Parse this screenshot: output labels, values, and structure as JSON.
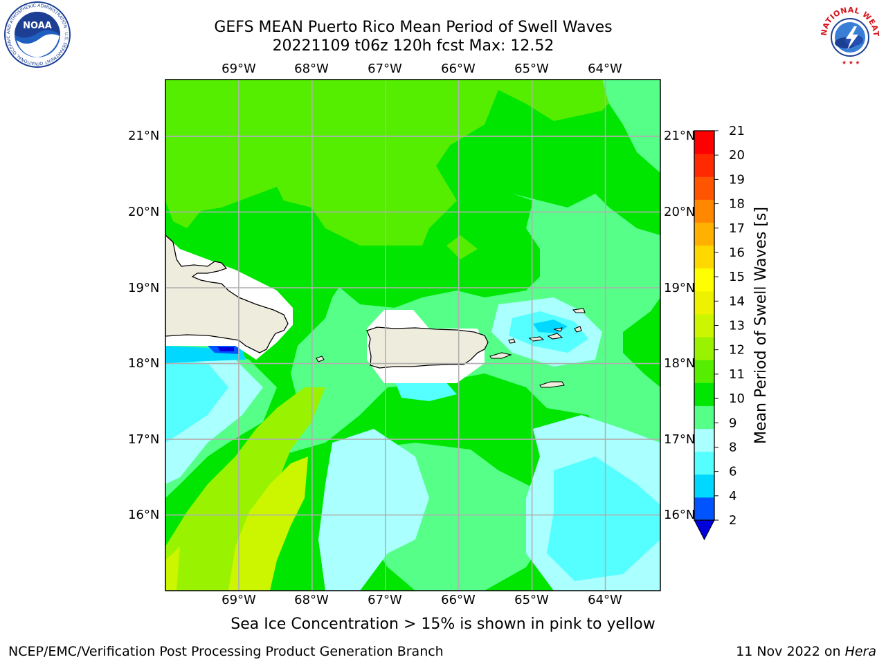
{
  "header": {
    "title_line1": "GEFS MEAN Puerto Rico Mean Period of Swell Waves",
    "title_line2": "20221109 t06z 120h fcst   Max: 12.52"
  },
  "logos": {
    "noaa_text": "NOAA",
    "noaa_ring_text": "NATIONAL OCEANIC AND ATMOSPHERIC ADMINISTRATION · U.S. DEPARTMENT OF COMMERCE",
    "nws_ring_text": "NATIONAL WEATHER SERVICE"
  },
  "map": {
    "lon_labels": [
      "69°W",
      "68°W",
      "67°W",
      "66°W",
      "65°W",
      "64°W"
    ],
    "lat_labels": [
      "21°N",
      "20°N",
      "19°N",
      "18°N",
      "17°N",
      "16°N"
    ],
    "lon_range": [
      -70.0,
      -63.25
    ],
    "lat_range": [
      15.0,
      21.75
    ],
    "land_color": "#eeecdd",
    "grid_color": "#b0b0b0"
  },
  "colorbar": {
    "label": "Mean Period of Swell Waves [s]",
    "ticks": [
      "21",
      "20",
      "19",
      "18",
      "17",
      "16",
      "15",
      "14",
      "13",
      "12",
      "11",
      "10",
      "9",
      "8",
      "6",
      "4",
      "2"
    ],
    "levels": [
      2,
      4,
      6,
      8,
      9,
      10,
      11,
      12,
      13,
      14,
      15,
      16,
      17,
      18,
      19,
      20,
      21
    ],
    "colors": [
      "#0054ff",
      "#00d8ff",
      "#55ffff",
      "#aaffff",
      "#55ff88",
      "#00e600",
      "#55ee00",
      "#99f200",
      "#ccf500",
      "#eef200",
      "#ffff00",
      "#ffd800",
      "#ffb000",
      "#ff8800",
      "#ff5500",
      "#ff2a00",
      "#ff0000"
    ],
    "extend_color": "#0000dd"
  },
  "caption": "Sea Ice Concentration > 15% is shown in pink to yellow",
  "footer": {
    "left": "NCEP/EMC/Verification Post Processing Product Generation Branch",
    "date": "11 Nov 2022 on ",
    "machine": "Hera"
  }
}
